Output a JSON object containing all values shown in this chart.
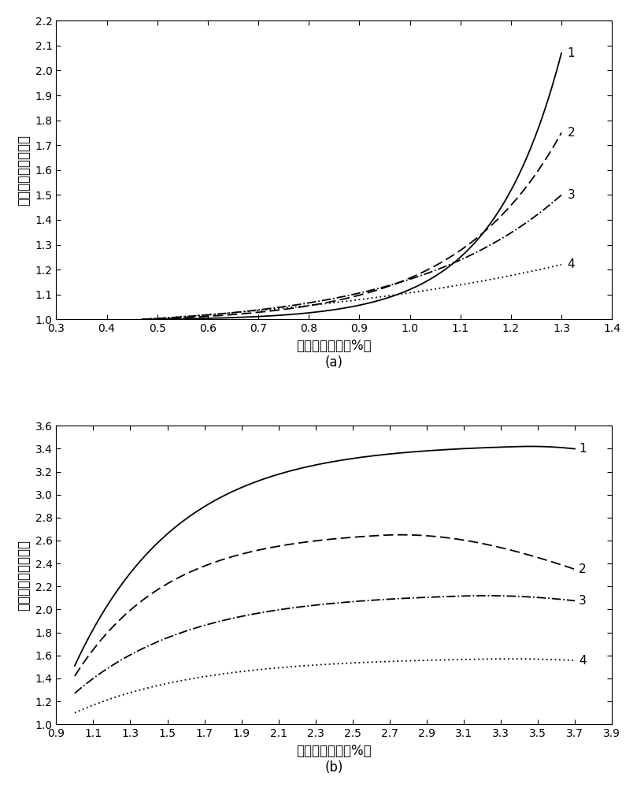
{
  "panel_a": {
    "xlabel": "镜质体反射率（%）",
    "ylabel": "有机碳含量恢复系数",
    "xlim": [
      0.3,
      1.4
    ],
    "ylim": [
      1.0,
      2.2
    ],
    "xticks": [
      0.3,
      0.4,
      0.5,
      0.6,
      0.7,
      0.8,
      0.9,
      1.0,
      1.1,
      1.2,
      1.3,
      1.4
    ],
    "yticks": [
      1.0,
      1.1,
      1.2,
      1.3,
      1.4,
      1.5,
      1.6,
      1.7,
      1.8,
      1.9,
      2.0,
      2.1,
      2.2
    ],
    "x_start": 0.47,
    "x_end": 1.3,
    "curves": [
      {
        "label": "1",
        "style": "solid",
        "end_y": 2.07,
        "alpha": 6.0
      },
      {
        "label": "2",
        "style": "dashed",
        "end_y": 1.75,
        "alpha": 4.0
      },
      {
        "label": "3",
        "style": "dashdot",
        "end_y": 1.5,
        "alpha": 2.8
      },
      {
        "label": "4",
        "style": "dotted",
        "end_y": 1.22,
        "alpha": 1.3
      }
    ],
    "label": "(a)"
  },
  "panel_b": {
    "xlabel": "镜质体反射率（%）",
    "ylabel": "有机碳含量恢复系数",
    "xlim": [
      0.9,
      3.9
    ],
    "ylim": [
      1.0,
      3.6
    ],
    "xticks": [
      0.9,
      1.1,
      1.3,
      1.5,
      1.7,
      1.9,
      2.1,
      2.3,
      2.5,
      2.7,
      2.9,
      3.1,
      3.3,
      3.5,
      3.7,
      3.9
    ],
    "yticks": [
      1.0,
      1.2,
      1.4,
      1.6,
      1.8,
      2.0,
      2.2,
      2.4,
      2.6,
      2.8,
      3.0,
      3.2,
      3.4,
      3.6
    ],
    "x_start": 1.0,
    "x_end": 3.7,
    "curves": [
      {
        "label": "1",
        "style": "solid",
        "y0": 1.51,
        "peak": 3.42,
        "xpeak": 3.4,
        "rise": 1.8,
        "decay": 0.18
      },
      {
        "label": "2",
        "style": "dashed",
        "y0": 1.42,
        "peak": 2.65,
        "xpeak": 2.65,
        "rise": 2.0,
        "decay": 0.28
      },
      {
        "label": "3",
        "style": "dashdot",
        "y0": 1.27,
        "peak": 2.12,
        "xpeak": 3.1,
        "rise": 1.6,
        "decay": 0.2
      },
      {
        "label": "4",
        "style": "dotted",
        "y0": 1.1,
        "peak": 1.57,
        "xpeak": 3.25,
        "rise": 1.5,
        "decay": 0.22
      }
    ],
    "label": "(b)"
  },
  "line_color": "#000000",
  "font_size": 11,
  "label_fontsize": 12,
  "tick_fontsize": 10
}
